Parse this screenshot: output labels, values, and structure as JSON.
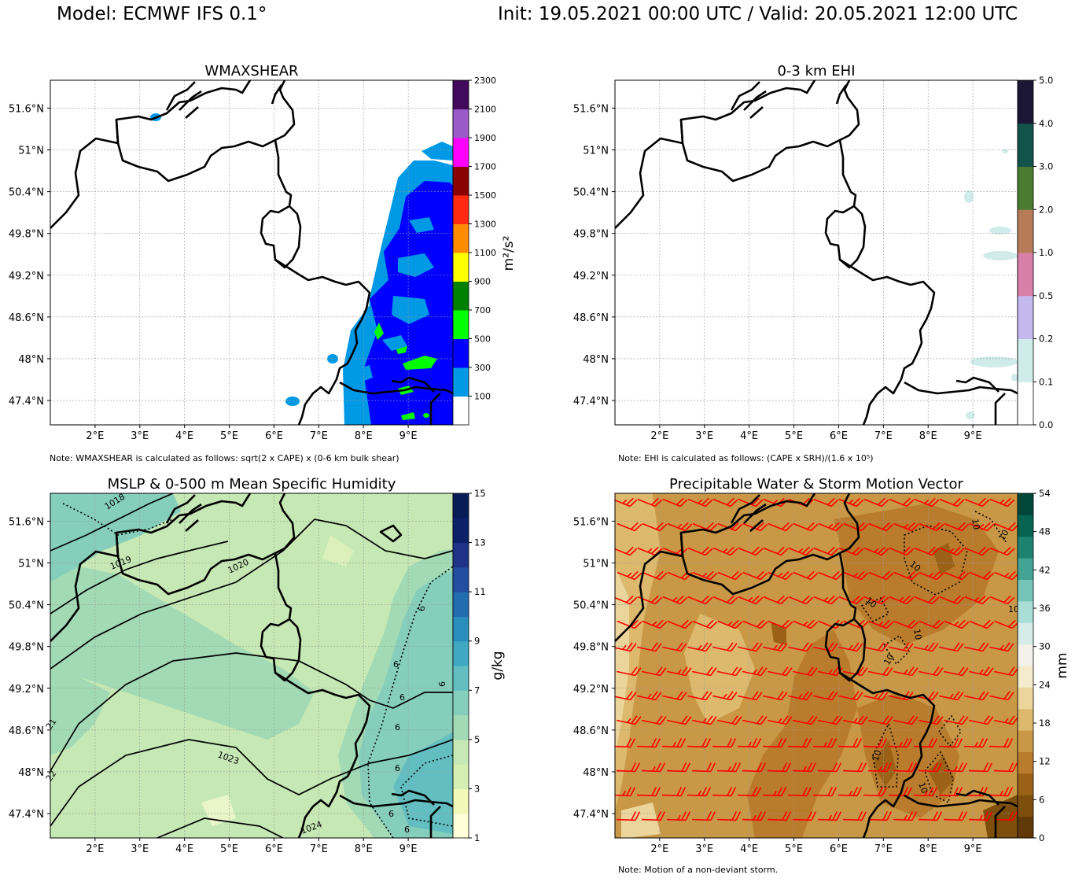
{
  "header": {
    "model": "Model: ECMWF IFS 0.1°",
    "validity": "Init: 19.05.2021 00:00 UTC / Valid: 20.05.2021 12:00 UTC"
  },
  "map_axes": {
    "lon_ticks": [
      2,
      3,
      4,
      5,
      6,
      7,
      8,
      9
    ],
    "lon_labels": [
      "2°E",
      "3°E",
      "4°E",
      "5°E",
      "6°E",
      "7°E",
      "8°E",
      "9°E"
    ],
    "lat_ticks": [
      51.6,
      51.0,
      50.4,
      49.8,
      49.2,
      48.6,
      48.0,
      47.4
    ],
    "lat_labels": [
      "51.6°N",
      "51°N",
      "50.4°N",
      "49.8°N",
      "49.2°N",
      "48.6°N",
      "48°N",
      "47.4°N"
    ],
    "lon_range": [
      1.0,
      10.0
    ],
    "lat_range": [
      47.05,
      52.0
    ],
    "gridlines": true
  },
  "panels": {
    "wmaxshear": {
      "title": "WMAXSHEAR",
      "unit": "m²/s²",
      "note": "Note: WMAXSHEAR is calculated as follows: sqrt(2 x CAPE) x (0-6 km bulk shear)"
    },
    "ehi": {
      "title": "0-3 km EHI",
      "unit": "",
      "note": "Note: EHI is calculated as follows: (CAPE x SRH)/(1.6 x 10⁵)"
    },
    "mslp": {
      "title": "MSLP & 0-500 m Mean Specific Humidity",
      "unit": "g/kg",
      "note": "",
      "isobar_labels": [
        "1018",
        "1019",
        "1020",
        "1023",
        "1024",
        "21",
        "22"
      ],
      "humidity_labels": [
        "6",
        "6",
        "6",
        "6",
        "6",
        "6",
        "9",
        "9"
      ]
    },
    "pwat": {
      "title": "Precipitable Water & Storm Motion Vector",
      "unit": "mm",
      "note": "Note: Motion of a non-deviant storm.",
      "contour_labels": [
        "10",
        "10",
        "10",
        "10",
        "10",
        "10",
        "10",
        "10",
        "10"
      ]
    }
  },
  "chart_data": [
    {
      "type": "heatmap",
      "title": "WMAXSHEAR",
      "colorbar_label": "m²/s²",
      "levels": [
        100,
        300,
        500,
        700,
        900,
        1100,
        1300,
        1500,
        1700,
        1900,
        2100,
        2300
      ],
      "colors": [
        "#ffffff",
        "#0099e6",
        "#0000ff",
        "#00ff00",
        "#008000",
        "#ffff00",
        "#ff8c00",
        "#ff2a10",
        "#8b0000",
        "#ff00ff",
        "#9a5bc8",
        "#420a5c"
      ],
      "colorbar_ticks": [
        "100",
        "300",
        "500",
        "700",
        "900",
        "1100",
        "1300",
        "1500",
        "1700",
        "1900",
        "2100",
        "2300"
      ]
    },
    {
      "type": "heatmap",
      "title": "0-3 km EHI",
      "colorbar_label": "",
      "levels": [
        0.0,
        0.1,
        0.2,
        0.5,
        1.0,
        2.0,
        3.0,
        4.0,
        5.0
      ],
      "colors": [
        "#ffffff",
        "#cfecea",
        "#c3b9ef",
        "#d87fa7",
        "#b77b5a",
        "#4b7a31",
        "#12534a",
        "#1a1633"
      ],
      "colorbar_ticks": [
        "0.0",
        "0.1",
        "0.2",
        "0.5",
        "1.0",
        "2.0",
        "3.0",
        "4.0",
        "5.0"
      ]
    },
    {
      "type": "heatmap",
      "title": "MSLP & 0-500 m Mean Specific Humidity",
      "colorbar_label": "g/kg",
      "levels": [
        1,
        3,
        5,
        7,
        9,
        11,
        13,
        15
      ],
      "colors": [
        "#ffffd9",
        "#f0f9b8",
        "#d5efb3",
        "#c5e8b4",
        "#a1dab4",
        "#85cebb",
        "#62bec1",
        "#40a8c2",
        "#2a8dbc",
        "#226cb0",
        "#234ea0",
        "#1f3386",
        "#0d2169",
        "#081d58"
      ],
      "colorbar_ticks": [
        "1",
        "3",
        "5",
        "7",
        "9",
        "11",
        "13",
        "15"
      ]
    },
    {
      "type": "heatmap",
      "title": "Precipitable Water & Storm Motion Vector",
      "colorbar_label": "mm",
      "levels": [
        0,
        6,
        12,
        18,
        24,
        30,
        36,
        42,
        48,
        54
      ],
      "colors": [
        "#5f3a08",
        "#7d4e0c",
        "#9b6217",
        "#b97b2c",
        "#c99846",
        "#dcb96d",
        "#ebd59b",
        "#f4ebcc",
        "#f3f1ea",
        "#d5ece8",
        "#a8ded6",
        "#74c5b8",
        "#43a496",
        "#1f8270",
        "#06634f",
        "#00473a"
      ],
      "colorbar_ticks": [
        "0",
        "6",
        "12",
        "18",
        "24",
        "30",
        "36",
        "42",
        "48",
        "54"
      ]
    }
  ]
}
